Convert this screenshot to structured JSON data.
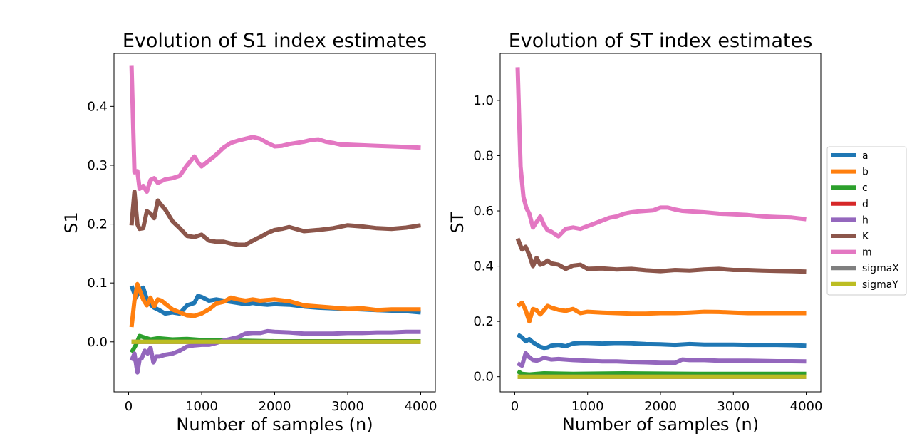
{
  "chart_data": [
    {
      "type": "line",
      "title": "Evolution of S1 index estimates",
      "xlabel": "Number of samples (n)",
      "ylabel": "S1",
      "xlim": [
        -200,
        4200
      ],
      "ylim": [
        -0.085,
        0.49
      ],
      "xticks": [
        0,
        1000,
        2000,
        3000,
        4000
      ],
      "yticks": [
        0.0,
        0.1,
        0.2,
        0.3,
        0.4
      ],
      "ytick_labels": [
        "0.0",
        "0.1",
        "0.2",
        "0.3",
        "0.4"
      ],
      "grid": false,
      "series": [
        {
          "name": "a",
          "color": "#1f77b4",
          "x": [
            40,
            100,
            150,
            200,
            250,
            300,
            350,
            400,
            500,
            600,
            700,
            800,
            900,
            950,
            1000,
            1100,
            1200,
            1300,
            1400,
            1500,
            1600,
            1700,
            1800,
            1900,
            2000,
            2200,
            2400,
            2600,
            2800,
            3000,
            3200,
            3400,
            3600,
            3800,
            4000
          ],
          "y": [
            0.095,
            0.075,
            0.088,
            0.092,
            0.072,
            0.063,
            0.058,
            0.055,
            0.048,
            0.05,
            0.048,
            0.062,
            0.066,
            0.078,
            0.076,
            0.07,
            0.072,
            0.07,
            0.068,
            0.066,
            0.064,
            0.066,
            0.064,
            0.063,
            0.064,
            0.063,
            0.06,
            0.058,
            0.057,
            0.056,
            0.055,
            0.054,
            0.053,
            0.052,
            0.05
          ]
        },
        {
          "name": "b",
          "color": "#ff7f0e",
          "x": [
            40,
            80,
            120,
            160,
            200,
            250,
            300,
            350,
            400,
            450,
            500,
            600,
            700,
            800,
            900,
            1000,
            1100,
            1200,
            1300,
            1400,
            1500,
            1600,
            1700,
            1800,
            1900,
            2000,
            2200,
            2400,
            2600,
            2800,
            3000,
            3200,
            3400,
            3600,
            3800,
            4000
          ],
          "y": [
            0.025,
            0.07,
            0.098,
            0.085,
            0.072,
            0.062,
            0.075,
            0.06,
            0.072,
            0.07,
            0.065,
            0.055,
            0.05,
            0.045,
            0.044,
            0.048,
            0.055,
            0.065,
            0.068,
            0.075,
            0.072,
            0.07,
            0.072,
            0.07,
            0.071,
            0.072,
            0.069,
            0.062,
            0.06,
            0.058,
            0.056,
            0.057,
            0.054,
            0.055,
            0.055,
            0.055
          ]
        },
        {
          "name": "c",
          "color": "#2ca02c",
          "x": [
            40,
            100,
            150,
            200,
            300,
            400,
            600,
            800,
            1000,
            1500,
            2000,
            2500,
            3000,
            3500,
            4000
          ],
          "y": [
            -0.018,
            -0.005,
            0.01,
            0.008,
            0.004,
            0.006,
            0.004,
            0.005,
            0.003,
            0.002,
            0.001,
            0.001,
            0.001,
            0.001,
            0.001
          ]
        },
        {
          "name": "d",
          "color": "#d62728",
          "x": [
            40,
            4000
          ],
          "y": [
            0.0,
            0.0
          ]
        },
        {
          "name": "h",
          "color": "#9467bd",
          "x": [
            40,
            80,
            120,
            150,
            180,
            220,
            260,
            300,
            340,
            380,
            420,
            500,
            600,
            700,
            800,
            900,
            1000,
            1100,
            1200,
            1300,
            1400,
            1500,
            1600,
            1700,
            1800,
            1900,
            2000,
            2200,
            2400,
            2600,
            2800,
            3000,
            3200,
            3400,
            3600,
            3800,
            4000
          ],
          "y": [
            -0.032,
            -0.02,
            -0.052,
            -0.03,
            -0.028,
            -0.015,
            -0.02,
            -0.01,
            -0.035,
            -0.025,
            -0.025,
            -0.022,
            -0.02,
            -0.015,
            -0.008,
            -0.006,
            -0.005,
            -0.005,
            -0.002,
            0.002,
            0.005,
            0.008,
            0.014,
            0.015,
            0.015,
            0.018,
            0.017,
            0.016,
            0.014,
            0.014,
            0.014,
            0.015,
            0.015,
            0.016,
            0.016,
            0.017,
            0.017
          ]
        },
        {
          "name": "K",
          "color": "#8c564b",
          "x": [
            40,
            80,
            120,
            150,
            200,
            250,
            300,
            350,
            400,
            450,
            500,
            600,
            700,
            800,
            900,
            1000,
            1100,
            1200,
            1300,
            1400,
            1500,
            1600,
            1700,
            1800,
            1900,
            2000,
            2100,
            2200,
            2400,
            2600,
            2800,
            3000,
            3200,
            3400,
            3600,
            3800,
            4000
          ],
          "y": [
            0.198,
            0.255,
            0.2,
            0.192,
            0.193,
            0.222,
            0.218,
            0.21,
            0.24,
            0.232,
            0.225,
            0.205,
            0.193,
            0.18,
            0.178,
            0.182,
            0.172,
            0.17,
            0.17,
            0.167,
            0.165,
            0.165,
            0.172,
            0.178,
            0.185,
            0.19,
            0.192,
            0.195,
            0.188,
            0.19,
            0.193,
            0.198,
            0.196,
            0.193,
            0.192,
            0.194,
            0.198
          ]
        },
        {
          "name": "m",
          "color": "#e377c2",
          "x": [
            40,
            80,
            120,
            150,
            200,
            250,
            300,
            350,
            400,
            500,
            600,
            700,
            800,
            900,
            950,
            1000,
            1100,
            1200,
            1300,
            1400,
            1500,
            1600,
            1700,
            1800,
            1900,
            2000,
            2100,
            2200,
            2300,
            2400,
            2500,
            2600,
            2700,
            2800,
            2900,
            3000,
            3200,
            3400,
            3600,
            3800,
            4000
          ],
          "y": [
            0.47,
            0.288,
            0.29,
            0.26,
            0.265,
            0.255,
            0.275,
            0.278,
            0.27,
            0.276,
            0.278,
            0.282,
            0.3,
            0.315,
            0.305,
            0.298,
            0.308,
            0.318,
            0.33,
            0.338,
            0.342,
            0.345,
            0.348,
            0.345,
            0.338,
            0.332,
            0.333,
            0.336,
            0.338,
            0.34,
            0.343,
            0.344,
            0.34,
            0.338,
            0.335,
            0.335,
            0.334,
            0.333,
            0.332,
            0.331,
            0.33
          ]
        },
        {
          "name": "sigmaX",
          "color": "#7f7f7f",
          "x": [
            40,
            4000
          ],
          "y": [
            0.0,
            0.0
          ]
        },
        {
          "name": "sigmaY",
          "color": "#bcbd22",
          "x": [
            40,
            4000
          ],
          "y": [
            0.0,
            0.0
          ]
        }
      ]
    },
    {
      "type": "line",
      "title": "Evolution of ST index estimates",
      "xlabel": "Number of samples (n)",
      "ylabel": "ST",
      "xlim": [
        -200,
        4200
      ],
      "ylim": [
        -0.055,
        1.17
      ],
      "xticks": [
        0,
        1000,
        2000,
        3000,
        4000
      ],
      "yticks": [
        0.0,
        0.2,
        0.4,
        0.6,
        0.8,
        1.0
      ],
      "ytick_labels": [
        "0.0",
        "0.2",
        "0.4",
        "0.6",
        "0.8",
        "1.0"
      ],
      "grid": false,
      "series": [
        {
          "name": "a",
          "color": "#1f77b4",
          "x": [
            40,
            100,
            150,
            200,
            250,
            300,
            350,
            400,
            450,
            500,
            600,
            700,
            800,
            900,
            1000,
            1200,
            1400,
            1600,
            1800,
            2000,
            2200,
            2400,
            2600,
            2800,
            3000,
            3200,
            3400,
            3600,
            3800,
            4000
          ],
          "y": [
            0.152,
            0.142,
            0.128,
            0.136,
            0.124,
            0.116,
            0.108,
            0.104,
            0.106,
            0.112,
            0.115,
            0.11,
            0.12,
            0.122,
            0.122,
            0.12,
            0.122,
            0.121,
            0.118,
            0.117,
            0.115,
            0.118,
            0.116,
            0.116,
            0.116,
            0.115,
            0.115,
            0.115,
            0.114,
            0.112
          ]
        },
        {
          "name": "b",
          "color": "#ff7f0e",
          "x": [
            40,
            100,
            150,
            200,
            250,
            300,
            350,
            400,
            450,
            500,
            600,
            700,
            800,
            900,
            1000,
            1200,
            1400,
            1600,
            1800,
            2000,
            2200,
            2400,
            2600,
            2800,
            3000,
            3200,
            3400,
            3600,
            3800,
            4000
          ],
          "y": [
            0.255,
            0.268,
            0.24,
            0.2,
            0.245,
            0.24,
            0.225,
            0.24,
            0.256,
            0.25,
            0.242,
            0.238,
            0.245,
            0.23,
            0.235,
            0.232,
            0.23,
            0.228,
            0.228,
            0.23,
            0.23,
            0.232,
            0.235,
            0.234,
            0.232,
            0.23,
            0.23,
            0.23,
            0.23,
            0.23
          ]
        },
        {
          "name": "c",
          "color": "#2ca02c",
          "x": [
            40,
            100,
            200,
            400,
            800,
            1500,
            2500,
            4000
          ],
          "y": [
            0.02,
            0.01,
            0.008,
            0.012,
            0.01,
            0.012,
            0.01,
            0.01
          ]
        },
        {
          "name": "d",
          "color": "#d62728",
          "x": [
            40,
            4000
          ],
          "y": [
            0.0,
            0.0
          ]
        },
        {
          "name": "h",
          "color": "#9467bd",
          "x": [
            40,
            100,
            150,
            200,
            250,
            300,
            350,
            400,
            500,
            600,
            700,
            800,
            1000,
            1200,
            1400,
            1600,
            1800,
            2000,
            2100,
            2200,
            2300,
            2400,
            2600,
            2800,
            3000,
            3200,
            3400,
            3600,
            3800,
            4000
          ],
          "y": [
            0.048,
            0.04,
            0.085,
            0.07,
            0.06,
            0.058,
            0.062,
            0.068,
            0.062,
            0.064,
            0.062,
            0.06,
            0.058,
            0.055,
            0.055,
            0.053,
            0.052,
            0.05,
            0.05,
            0.05,
            0.062,
            0.06,
            0.06,
            0.058,
            0.058,
            0.058,
            0.057,
            0.056,
            0.056,
            0.055
          ]
        },
        {
          "name": "K",
          "color": "#8c564b",
          "x": [
            40,
            100,
            150,
            200,
            250,
            300,
            350,
            400,
            450,
            500,
            600,
            700,
            800,
            900,
            1000,
            1200,
            1400,
            1600,
            1800,
            2000,
            2200,
            2400,
            2600,
            2800,
            3000,
            3200,
            3400,
            3600,
            3800,
            4000
          ],
          "y": [
            0.5,
            0.46,
            0.47,
            0.44,
            0.4,
            0.43,
            0.405,
            0.41,
            0.42,
            0.41,
            0.405,
            0.39,
            0.402,
            0.405,
            0.39,
            0.392,
            0.388,
            0.39,
            0.385,
            0.382,
            0.386,
            0.384,
            0.388,
            0.39,
            0.386,
            0.386,
            0.384,
            0.383,
            0.382,
            0.38
          ]
        },
        {
          "name": "m",
          "color": "#e377c2",
          "x": [
            40,
            80,
            120,
            160,
            200,
            250,
            300,
            350,
            400,
            450,
            500,
            600,
            700,
            800,
            900,
            1000,
            1100,
            1200,
            1300,
            1400,
            1500,
            1600,
            1700,
            1800,
            1900,
            2000,
            2100,
            2200,
            2300,
            2400,
            2600,
            2800,
            3000,
            3200,
            3400,
            3600,
            3800,
            4000
          ],
          "y": [
            1.12,
            0.76,
            0.65,
            0.61,
            0.59,
            0.54,
            0.56,
            0.58,
            0.55,
            0.53,
            0.525,
            0.508,
            0.535,
            0.54,
            0.535,
            0.545,
            0.555,
            0.565,
            0.575,
            0.58,
            0.59,
            0.595,
            0.598,
            0.6,
            0.602,
            0.612,
            0.612,
            0.605,
            0.6,
            0.598,
            0.595,
            0.59,
            0.588,
            0.585,
            0.58,
            0.578,
            0.576,
            0.57
          ]
        },
        {
          "name": "sigmaX",
          "color": "#7f7f7f",
          "x": [
            40,
            4000
          ],
          "y": [
            0.0,
            0.0
          ]
        },
        {
          "name": "sigmaY",
          "color": "#bcbd22",
          "x": [
            40,
            4000
          ],
          "y": [
            0.0,
            0.0
          ]
        }
      ]
    }
  ],
  "legend": {
    "placement": "right",
    "entries": [
      {
        "name": "a",
        "color": "#1f77b4"
      },
      {
        "name": "b",
        "color": "#ff7f0e"
      },
      {
        "name": "c",
        "color": "#2ca02c"
      },
      {
        "name": "d",
        "color": "#d62728"
      },
      {
        "name": "h",
        "color": "#9467bd"
      },
      {
        "name": "K",
        "color": "#8c564b"
      },
      {
        "name": "m",
        "color": "#e377c2"
      },
      {
        "name": "sigmaX",
        "color": "#7f7f7f"
      },
      {
        "name": "sigmaY",
        "color": "#bcbd22"
      }
    ]
  }
}
